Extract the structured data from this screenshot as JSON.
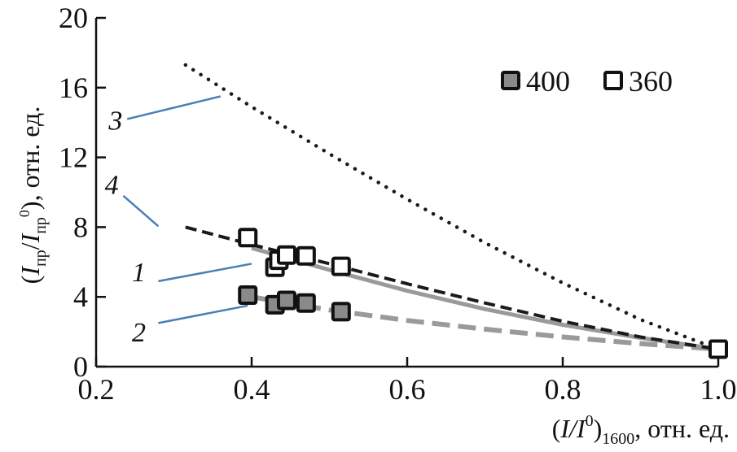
{
  "chart_data": {
    "type": "scatter",
    "xlim": [
      0.2,
      1.0
    ],
    "ylim": [
      0,
      20
    ],
    "x_ticks": [
      0.2,
      0.4,
      0.6,
      0.8,
      1.0
    ],
    "x_tick_labels": [
      "0.2",
      "0.4",
      "0.6",
      "0.8",
      "1.0"
    ],
    "y_ticks": [
      0,
      4,
      8,
      12,
      16,
      20
    ],
    "y_tick_labels": [
      "0",
      "4",
      "8",
      "12",
      "16",
      "20"
    ],
    "xlabel": {
      "pre": "(",
      "italic": "I/I",
      "sup": "0",
      "close": ")",
      "sub": "1600",
      "post": ", отн. ед."
    },
    "ylabel": {
      "open": "(",
      "i1": "I",
      "sub1": "пр",
      "slash": "/",
      "i2": "I",
      "sub2": "пр",
      "sup2": "0",
      "post": "), отн. ед."
    },
    "grid": false,
    "legend_position": "top-right",
    "series": [
      {
        "name": "400",
        "marker": "filled-square",
        "color": "#8a8a8a",
        "points": [
          [
            0.395,
            4.1
          ],
          [
            0.43,
            3.55
          ],
          [
            0.445,
            3.8
          ],
          [
            0.47,
            3.65
          ],
          [
            0.515,
            3.15
          ],
          [
            1.0,
            1.0
          ]
        ]
      },
      {
        "name": "360",
        "marker": "open-square",
        "color": "#ffffff",
        "points": [
          [
            0.395,
            7.4
          ],
          [
            0.43,
            5.7
          ],
          [
            0.435,
            6.1
          ],
          [
            0.445,
            6.4
          ],
          [
            0.47,
            6.35
          ],
          [
            0.515,
            5.75
          ],
          [
            1.0,
            1.0
          ]
        ]
      }
    ],
    "curves": [
      {
        "label": "1",
        "style": "solid",
        "color": "#9a9a9a",
        "points": [
          [
            0.4,
            6.8
          ],
          [
            0.5,
            5.55
          ],
          [
            0.6,
            4.35
          ],
          [
            0.7,
            3.3
          ],
          [
            0.8,
            2.4
          ],
          [
            0.9,
            1.65
          ],
          [
            1.0,
            1.0
          ]
        ]
      },
      {
        "label": "2",
        "style": "dashed",
        "color": "#9a9a9a",
        "points": [
          [
            0.4,
            4.0
          ],
          [
            0.5,
            3.25
          ],
          [
            0.6,
            2.65
          ],
          [
            0.7,
            2.15
          ],
          [
            0.8,
            1.7
          ],
          [
            0.9,
            1.32
          ],
          [
            1.0,
            1.0
          ]
        ]
      },
      {
        "label": "3",
        "style": "dotted",
        "color": "#1a1a1a",
        "points": [
          [
            0.315,
            17.3
          ],
          [
            0.4,
            14.9
          ],
          [
            0.5,
            12.2
          ],
          [
            0.6,
            9.6
          ],
          [
            0.7,
            7.1
          ],
          [
            0.8,
            4.8
          ],
          [
            0.9,
            2.7
          ],
          [
            1.0,
            1.0
          ]
        ]
      },
      {
        "label": "4",
        "style": "dashed",
        "color": "#1a1a1a",
        "points": [
          [
            0.315,
            8.0
          ],
          [
            0.4,
            7.0
          ],
          [
            0.5,
            5.9
          ],
          [
            0.6,
            4.75
          ],
          [
            0.7,
            3.65
          ],
          [
            0.8,
            2.6
          ],
          [
            0.9,
            1.7
          ],
          [
            1.0,
            1.0
          ]
        ]
      }
    ],
    "annotations": [
      {
        "text": "1",
        "text_at": [
          0.255,
          4.9
        ],
        "line": [
          [
            0.28,
            4.9
          ],
          [
            0.4,
            5.9
          ]
        ]
      },
      {
        "text": "2",
        "text_at": [
          0.255,
          1.45
        ],
        "line": [
          [
            0.28,
            2.5
          ],
          [
            0.395,
            3.5
          ]
        ]
      },
      {
        "text": "3",
        "text_at": [
          0.225,
          13.6
        ],
        "line": [
          [
            0.24,
            14.2
          ],
          [
            0.36,
            15.5
          ]
        ]
      },
      {
        "text": "4",
        "text_at": [
          0.22,
          9.9
        ],
        "line": [
          [
            0.235,
            9.8
          ],
          [
            0.28,
            8.05
          ]
        ]
      }
    ]
  }
}
